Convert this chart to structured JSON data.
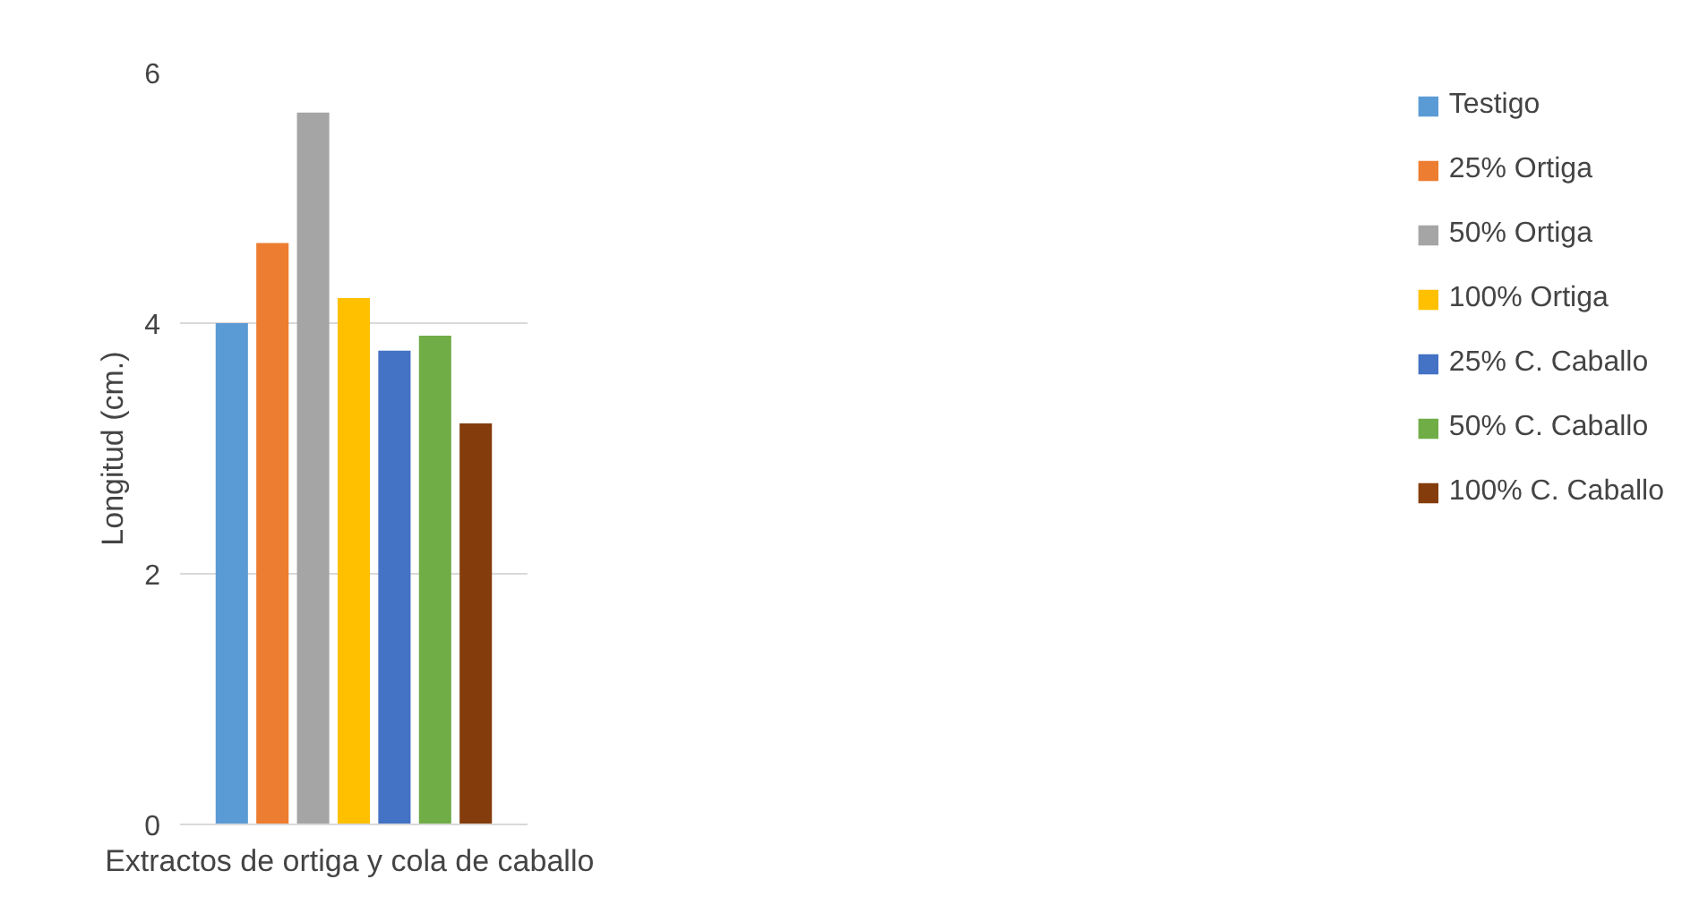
{
  "chart_data": {
    "type": "bar",
    "xlabel": "Extractos  de ortiga y cola de caballo",
    "ylabel": "Longitud (cm.)",
    "categories": [
      null
    ],
    "series": [
      {
        "name": "Testigo",
        "color": "#5b9bd5",
        "values": [
          4.0
        ]
      },
      {
        "name": "25% Ortiga",
        "color": "#ed7d31",
        "values": [
          4.64
        ]
      },
      {
        "name": "50% Ortiga",
        "color": "#a5a5a5",
        "values": [
          5.68
        ]
      },
      {
        "name": "100% Ortiga",
        "color": "#ffc000",
        "values": [
          4.2
        ]
      },
      {
        "name": "25% C. Caballo",
        "color": "#4472c4",
        "values": [
          3.78
        ]
      },
      {
        "name": "50% C. Caballo",
        "color": "#70ad47",
        "values": [
          3.9
        ]
      },
      {
        "name": "100% C. Caballo",
        "color": "#843c0c",
        "values": [
          3.2
        ]
      }
    ],
    "ylim": [
      0,
      6
    ],
    "yticks": [
      0,
      2,
      4,
      6
    ],
    "grid": "y",
    "legend": "right"
  }
}
